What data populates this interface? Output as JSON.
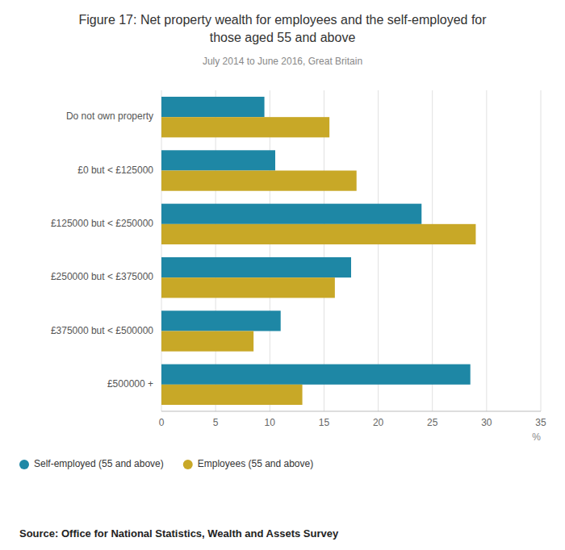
{
  "chart_data": {
    "type": "bar",
    "orientation": "horizontal",
    "title": "Figure 17: Net property wealth for employees and the self-employed for\nthose aged 55 and above",
    "subtitle": "July 2014 to June 2016, Great Britain",
    "categories": [
      "Do not own property",
      "£0 but < £125000",
      "£125000 but < £250000",
      "£250000 but < £375000",
      "£375000 but < £500000",
      "£500000 +"
    ],
    "series": [
      {
        "name": "Self-employed (55 and above)",
        "color": "#1e87a5",
        "values": [
          9.5,
          10.5,
          24.0,
          17.5,
          11.0,
          28.5
        ]
      },
      {
        "name": "Employees (55 and above)",
        "color": "#c8a827",
        "values": [
          15.5,
          18.0,
          29.0,
          16.0,
          8.5,
          13.0
        ]
      }
    ],
    "xlabel": "%",
    "xlim": [
      0,
      35
    ],
    "xticks": [
      0,
      5,
      10,
      15,
      20,
      25,
      30,
      35
    ],
    "grid": true,
    "legend": "lower left",
    "source": "Source: Office for National Statistics, Wealth and Assets Survey"
  }
}
